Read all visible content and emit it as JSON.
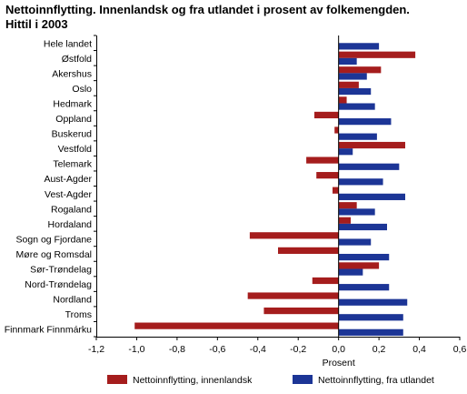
{
  "chart_data": {
    "type": "bar",
    "orientation": "horizontal",
    "title_lines": [
      "Nettoinnflytting. Innenlandsk og fra utlandet i prosent av folkemengden.",
      "Hittil i 2003"
    ],
    "xlabel": "Prosent",
    "ylabel": "",
    "xlim": [
      -1.2,
      0.6
    ],
    "xticks": [
      -1.2,
      -1.0,
      -0.8,
      -0.6,
      -0.4,
      -0.2,
      0.0,
      0.2,
      0.4,
      0.6
    ],
    "xtick_labels": [
      "-1,2",
      "-1,0",
      "-0,8",
      "-0,6",
      "-0,4",
      "-0,2",
      "0,0",
      "0,2",
      "0,4",
      "0,6"
    ],
    "grid": false,
    "legend_position": "bottom",
    "categories": [
      "Hele landet",
      "Østfold",
      "Akershus",
      "Oslo",
      "Hedmark",
      "Oppland",
      "Buskerud",
      "Vestfold",
      "Telemark",
      "Aust-Agder",
      "Vest-Agder",
      "Rogaland",
      "Hordaland",
      "Sogn og Fjordane",
      "Møre og Romsdal",
      "Sør-Trøndelag",
      "Nord-Trøndelag",
      "Nordland",
      "Troms",
      "Finnmark Finnmárku"
    ],
    "series": [
      {
        "name": "Nettoinnflytting, innenlandsk",
        "color": "#a51d1d",
        "values": [
          0.0,
          0.38,
          0.21,
          0.1,
          0.04,
          -0.12,
          -0.02,
          0.33,
          -0.16,
          -0.11,
          -0.03,
          0.09,
          0.06,
          -0.44,
          -0.3,
          0.2,
          -0.13,
          -0.45,
          -0.37,
          -1.01
        ]
      },
      {
        "name": "Nettoinnflytting, fra utlandet",
        "color": "#1c3596",
        "values": [
          0.2,
          0.09,
          0.14,
          0.16,
          0.18,
          0.26,
          0.19,
          0.07,
          0.3,
          0.22,
          0.33,
          0.18,
          0.24,
          0.16,
          0.25,
          0.12,
          0.25,
          0.34,
          0.32,
          0.32
        ]
      }
    ]
  }
}
